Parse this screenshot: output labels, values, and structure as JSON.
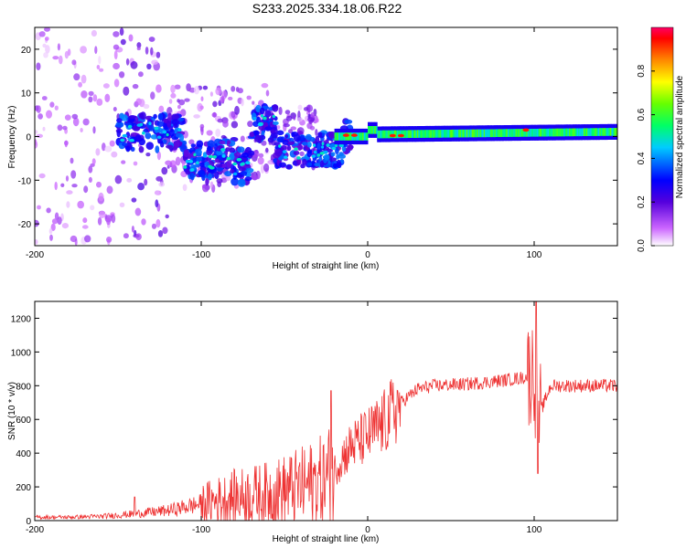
{
  "title": "S233.2025.334.18.06.R22",
  "chart_data": [
    {
      "type": "heatmap",
      "xlabel": "Height of straight line (km)",
      "ylabel": "Frequency (Hz)",
      "xlim": [
        -200,
        150
      ],
      "ylim": [
        -25,
        25
      ],
      "xticks": [
        -200,
        -100,
        0,
        100
      ],
      "yticks": [
        -20,
        -10,
        0,
        10,
        20
      ],
      "colorbar": {
        "label": "Normalized spectral amplitude",
        "range": [
          0,
          1
        ],
        "ticks": [
          0.0,
          0.2,
          0.4,
          0.6,
          0.8
        ]
      },
      "description_points": [
        {
          "x": -180,
          "f": 0,
          "amp": 0.1
        },
        {
          "x": -120,
          "f": 1,
          "amp": 0.25
        },
        {
          "x": -90,
          "f": -6,
          "amp": 0.3
        },
        {
          "x": -60,
          "f": 3,
          "amp": 0.3
        },
        {
          "x": -30,
          "f": -3,
          "amp": 0.3
        },
        {
          "x": -10,
          "f": 0,
          "amp": 0.8
        },
        {
          "x": 20,
          "f": 0,
          "amp": 0.95
        },
        {
          "x": 100,
          "f": 1,
          "amp": 0.6
        },
        {
          "x": 150,
          "f": 1,
          "amp": 0.7
        }
      ]
    },
    {
      "type": "line",
      "xlabel": "Height of straight line (km)",
      "ylabel": "SNR (10 * v/v)",
      "xlim": [
        -200,
        150
      ],
      "ylim": [
        0,
        1300
      ],
      "xticks": [
        -200,
        -100,
        0,
        100
      ],
      "yticks": [
        0,
        200,
        400,
        600,
        800,
        1000,
        1200
      ],
      "series": [
        {
          "name": "SNR",
          "color": "#ee3333",
          "x": [
            -200,
            -180,
            -160,
            -140,
            -120,
            -100,
            -80,
            -60,
            -40,
            -25,
            -20,
            -15,
            -10,
            0,
            10,
            20,
            30,
            40,
            60,
            80,
            95,
            100,
            102,
            110,
            130,
            150
          ],
          "y": [
            20,
            20,
            25,
            40,
            60,
            100,
            140,
            160,
            200,
            240,
            300,
            380,
            440,
            500,
            580,
            700,
            780,
            800,
            810,
            830,
            850,
            900,
            600,
            800,
            800,
            800
          ]
        }
      ]
    }
  ]
}
